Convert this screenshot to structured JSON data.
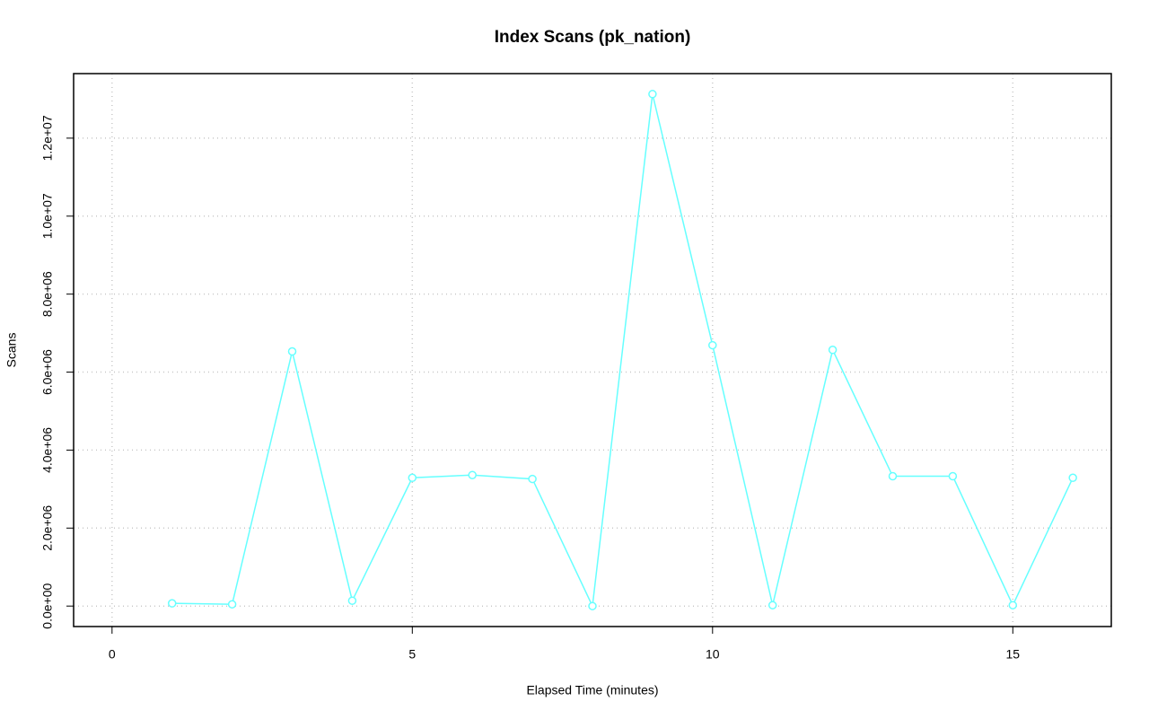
{
  "chart_data": {
    "type": "line",
    "title": "Index Scans (pk_nation)",
    "x_label": "Elapsed Time (minutes)",
    "y_label": "Scans",
    "x": [
      1,
      2,
      3,
      4,
      5,
      6,
      7,
      8,
      9,
      10,
      11,
      12,
      13,
      14,
      15,
      16
    ],
    "series": [
      {
        "name": "pk_nation",
        "color": "#66ffff",
        "values": [
          70000,
          46000,
          6530000,
          138000,
          3290000,
          3360000,
          3260000,
          0,
          13130000,
          6690000,
          23000,
          6570000,
          3330000,
          3330000,
          23000,
          3290000
        ]
      }
    ],
    "xlim": [
      -0.64,
      16.64
    ],
    "xticks": [
      0,
      5,
      10,
      15
    ],
    "ylim": [
      -525000,
      13655000
    ],
    "yticks": [
      {
        "value": 0,
        "label": "0.0e+00"
      },
      {
        "value": 2000000,
        "label": "2.0e+06"
      },
      {
        "value": 4000000,
        "label": "4.0e+06"
      },
      {
        "value": 6000000,
        "label": "6.0e+06"
      },
      {
        "value": 8000000,
        "label": "8.0e+06"
      },
      {
        "value": 10000000,
        "label": "1.0e+07"
      },
      {
        "value": 12000000,
        "label": "1.2e+07"
      }
    ],
    "grid": true
  }
}
